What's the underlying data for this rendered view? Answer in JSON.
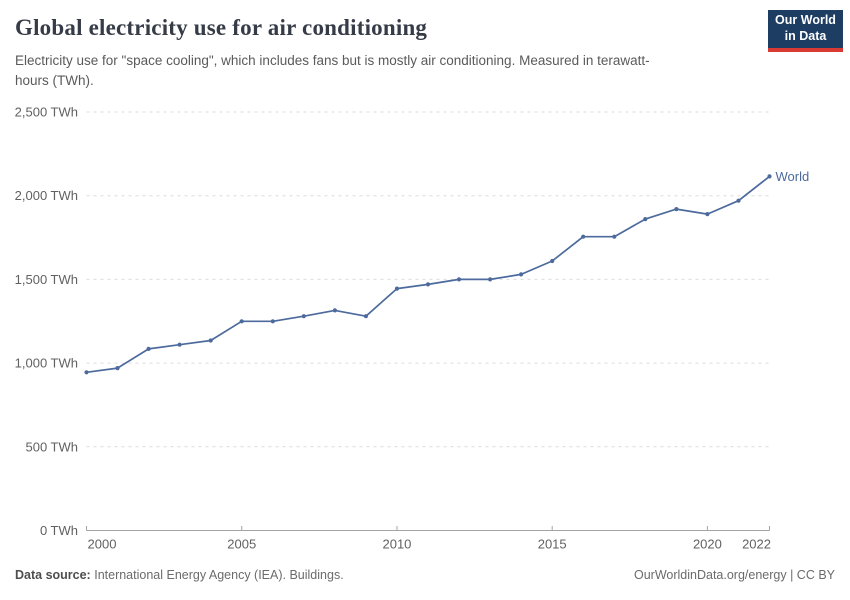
{
  "header": {
    "title": "Global electricity use for air conditioning",
    "subtitle": "Electricity use for \"space cooling\", which includes fans but is mostly air conditioning. Measured in terawatt-hours (TWh).",
    "logo_line1": "Our World",
    "logo_line2": "in Data"
  },
  "chart_data": {
    "type": "line",
    "title": "Global electricity use for air conditioning",
    "xlabel": "",
    "ylabel": "",
    "xlim": [
      2000,
      2022
    ],
    "ylim": [
      0,
      2500
    ],
    "grid": "horizontal-dashed",
    "legend_position": "end-of-line-label",
    "x_ticks": [
      {
        "value": 2000,
        "label": "2000"
      },
      {
        "value": 2005,
        "label": "2005"
      },
      {
        "value": 2010,
        "label": "2010"
      },
      {
        "value": 2015,
        "label": "2015"
      },
      {
        "value": 2020,
        "label": "2020"
      },
      {
        "value": 2022,
        "label": "2022"
      }
    ],
    "y_ticks": [
      {
        "value": 0,
        "label": "0 TWh"
      },
      {
        "value": 500,
        "label": "500 TWh"
      },
      {
        "value": 1000,
        "label": "1,000 TWh"
      },
      {
        "value": 1500,
        "label": "1,500 TWh"
      },
      {
        "value": 2000,
        "label": "2,000 TWh"
      },
      {
        "value": 2500,
        "label": "2,500 TWh"
      }
    ],
    "series": [
      {
        "name": "World",
        "color": "#4C6A9C",
        "x": [
          2000,
          2001,
          2002,
          2003,
          2004,
          2005,
          2006,
          2007,
          2008,
          2009,
          2010,
          2011,
          2012,
          2013,
          2014,
          2015,
          2016,
          2017,
          2018,
          2019,
          2020,
          2021,
          2022
        ],
        "values": [
          945,
          970,
          1085,
          1110,
          1135,
          1250,
          1250,
          1280,
          1315,
          1280,
          1445,
          1470,
          1500,
          1500,
          1530,
          1610,
          1755,
          1755,
          1860,
          1920,
          1890,
          1970,
          2115
        ]
      }
    ]
  },
  "footer": {
    "source_label": "Data source:",
    "source_text": "International Energy Agency (IEA). Buildings.",
    "credit": "OurWorldinData.org/energy | CC BY"
  },
  "colors": {
    "accent": "#4C6A9C",
    "logo_bg": "#1d3d63",
    "logo_stripe": "#d93a34",
    "grid": "#dcdcdc",
    "axis": "#a3a3a3",
    "tick_text": "#616161"
  }
}
